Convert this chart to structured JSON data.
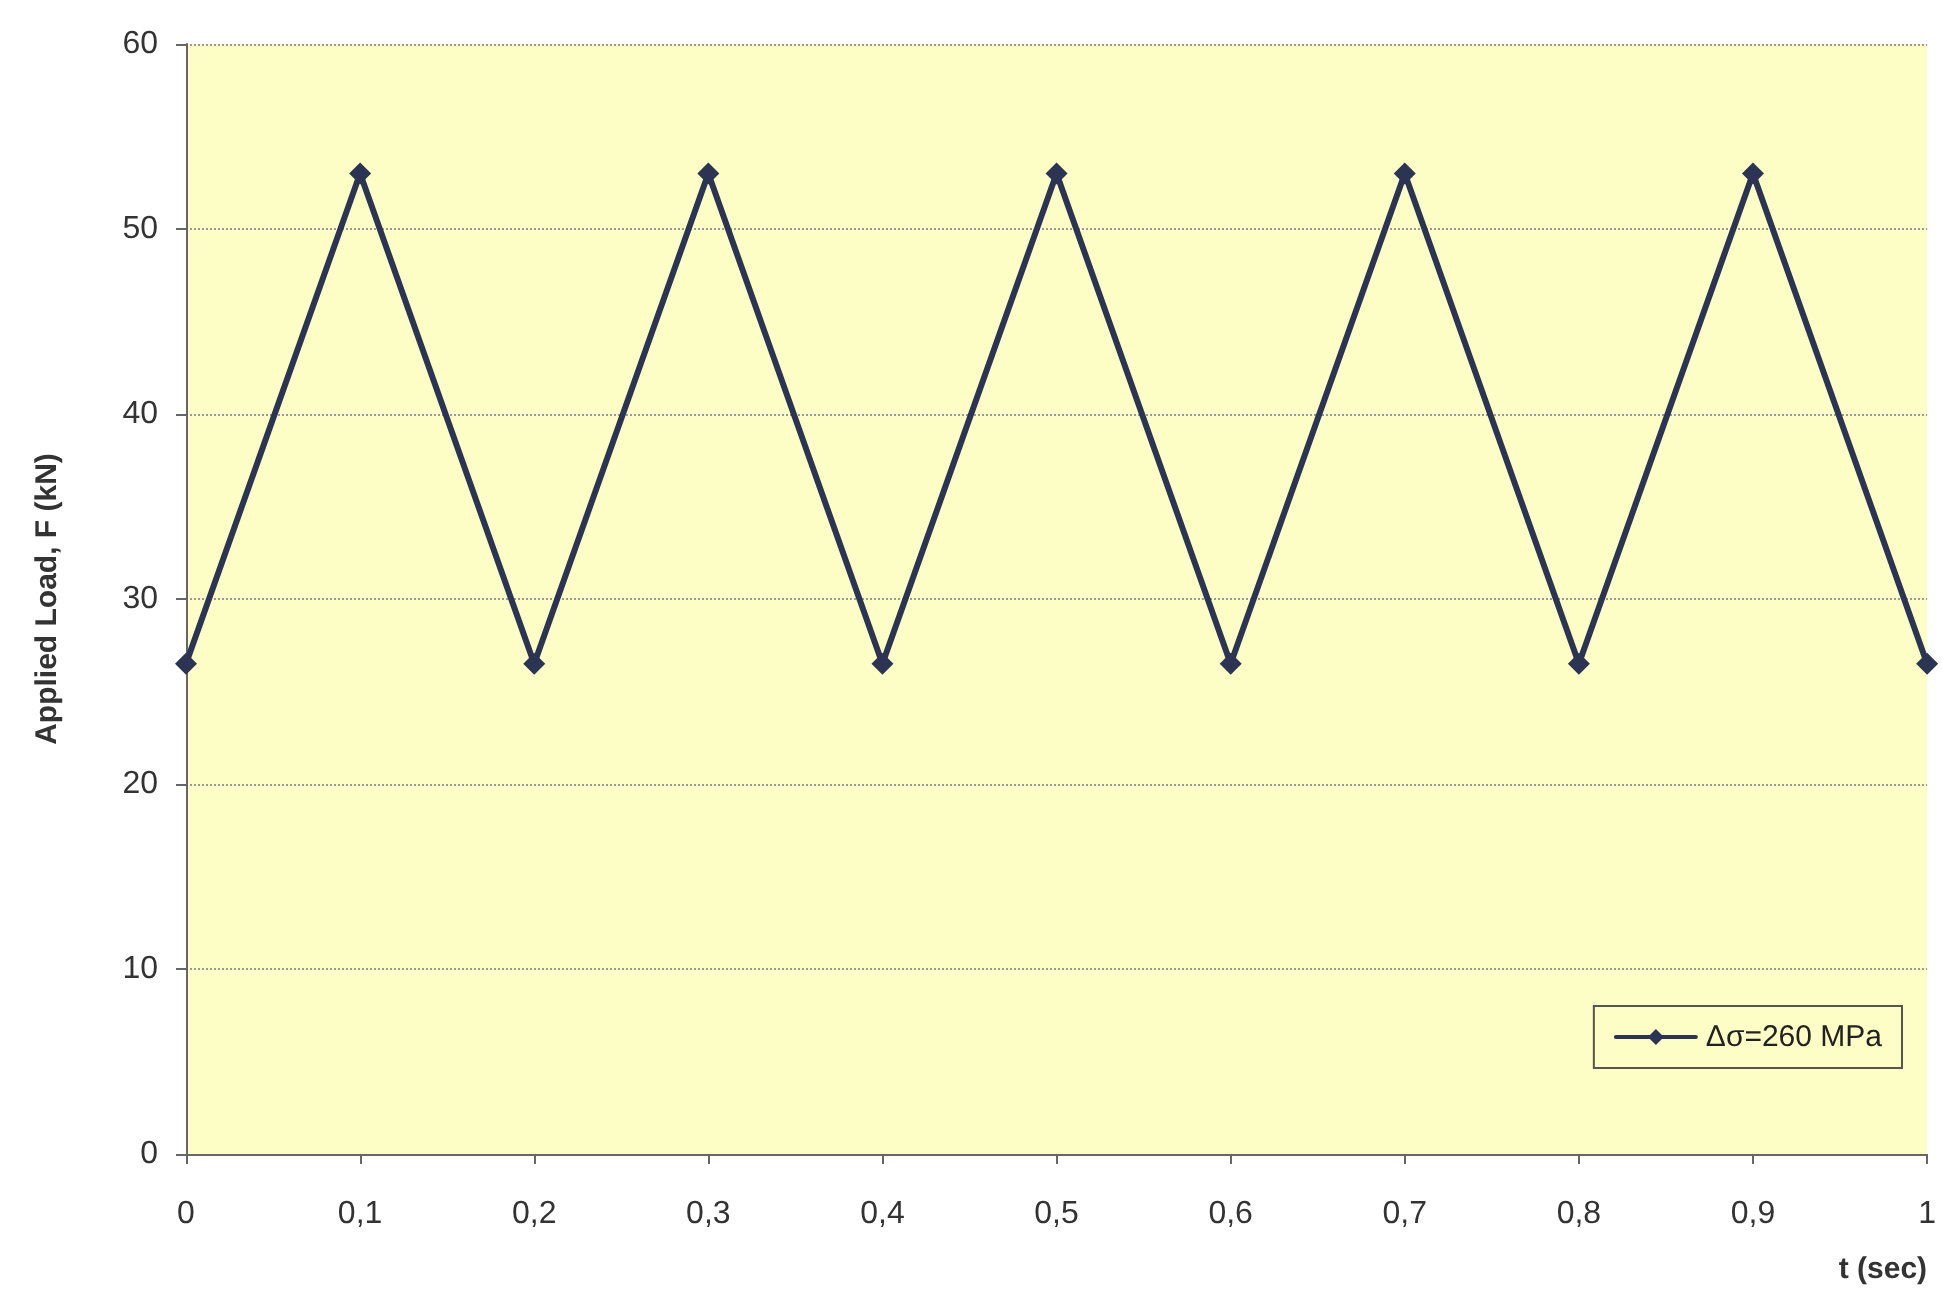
{
  "chart_data": {
    "type": "line",
    "xlabel": "t (sec)",
    "ylabel": "Applied Load, F (kN)",
    "x": [
      0,
      0.1,
      0.2,
      0.3,
      0.4,
      0.5,
      0.6,
      0.7,
      0.8,
      0.9,
      1
    ],
    "series": [
      {
        "name": "Δσ=260 MPa",
        "color": "#2b3553",
        "values": [
          26.5,
          53,
          26.5,
          53,
          26.5,
          53,
          26.5,
          53,
          26.5,
          53,
          26.5
        ]
      }
    ],
    "xlim": [
      0,
      1
    ],
    "ylim": [
      0,
      60
    ],
    "xticks": [
      0,
      {
        "value": 0.1,
        "label": "0,1"
      },
      {
        "value": 0.2,
        "label": "0,2"
      },
      {
        "value": 0.3,
        "label": "0,3"
      },
      {
        "value": 0.4,
        "label": "0,4"
      },
      {
        "value": 0.5,
        "label": "0,5"
      },
      {
        "value": 0.6,
        "label": "0,6"
      },
      {
        "value": 0.7,
        "label": "0,7"
      },
      {
        "value": 0.8,
        "label": "0,8"
      },
      {
        "value": 0.9,
        "label": "0,9"
      },
      1
    ],
    "yticks": [
      0,
      10,
      20,
      30,
      40,
      50,
      60
    ],
    "grid": "y",
    "legend": "bottom right",
    "marker": "diamond",
    "line_style": "solid"
  }
}
